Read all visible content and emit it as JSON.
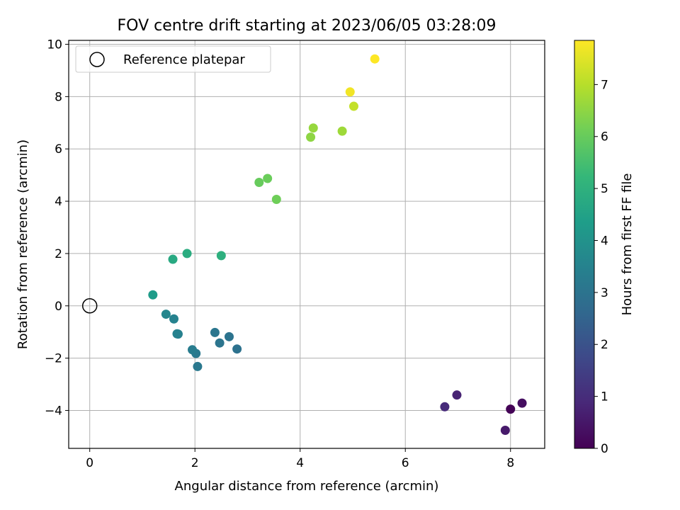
{
  "chart_data": {
    "type": "scatter",
    "title": "FOV centre drift starting at 2023/06/05 03:28:09",
    "xlabel": "Angular distance from reference (arcmin)",
    "ylabel": "Rotation from reference (arcmin)",
    "xlim": [
      -0.4,
      8.65
    ],
    "ylim": [
      -5.45,
      10.15
    ],
    "xticks": [
      "0",
      "2",
      "4",
      "6",
      "8"
    ],
    "yticks": [
      "−4",
      "−2",
      "0",
      "2",
      "4",
      "6",
      "8",
      "10"
    ],
    "grid": true,
    "legend": {
      "placement": "upper-left",
      "entries": [
        "Reference platepar"
      ]
    },
    "reference_point": {
      "x": 0,
      "y": 0
    },
    "colorbar": {
      "label": "Hours from first FF file",
      "range": [
        0,
        7.85
      ],
      "ticks": [
        "0",
        "1",
        "2",
        "3",
        "4",
        "5",
        "6",
        "7"
      ],
      "colormap": "viridis"
    },
    "points": [
      {
        "x": 8.0,
        "y": -3.95,
        "hours": 0.05
      },
      {
        "x": 8.22,
        "y": -3.72,
        "hours": 0.3
      },
      {
        "x": 7.9,
        "y": -4.76,
        "hours": 0.55
      },
      {
        "x": 6.98,
        "y": -3.41,
        "hours": 0.75
      },
      {
        "x": 6.75,
        "y": -3.86,
        "hours": 0.95
      },
      {
        "x": 2.8,
        "y": -1.65,
        "hours": 2.95
      },
      {
        "x": 2.65,
        "y": -1.18,
        "hours": 3.0
      },
      {
        "x": 2.47,
        "y": -1.42,
        "hours": 3.05
      },
      {
        "x": 2.38,
        "y": -1.02,
        "hours": 3.1
      },
      {
        "x": 2.05,
        "y": -2.32,
        "hours": 3.15
      },
      {
        "x": 2.02,
        "y": -1.82,
        "hours": 3.2
      },
      {
        "x": 1.95,
        "y": -1.68,
        "hours": 3.3
      },
      {
        "x": 1.68,
        "y": -1.08,
        "hours": 3.4
      },
      {
        "x": 1.66,
        "y": -1.07,
        "hours": 3.45
      },
      {
        "x": 1.6,
        "y": -0.5,
        "hours": 3.5
      },
      {
        "x": 1.45,
        "y": -0.32,
        "hours": 3.6
      },
      {
        "x": 1.2,
        "y": 0.42,
        "hours": 4.3
      },
      {
        "x": 1.58,
        "y": 1.78,
        "hours": 4.75
      },
      {
        "x": 1.85,
        "y": 2.0,
        "hours": 4.85
      },
      {
        "x": 2.5,
        "y": 1.92,
        "hours": 4.95
      },
      {
        "x": 3.22,
        "y": 4.72,
        "hours": 6.0
      },
      {
        "x": 3.38,
        "y": 4.87,
        "hours": 6.05
      },
      {
        "x": 3.55,
        "y": 4.07,
        "hours": 6.1
      },
      {
        "x": 4.2,
        "y": 6.45,
        "hours": 6.5
      },
      {
        "x": 4.25,
        "y": 6.8,
        "hours": 6.6
      },
      {
        "x": 4.8,
        "y": 6.68,
        "hours": 6.7
      },
      {
        "x": 5.02,
        "y": 7.63,
        "hours": 7.15
      },
      {
        "x": 4.95,
        "y": 8.18,
        "hours": 7.7
      },
      {
        "x": 5.42,
        "y": 9.44,
        "hours": 7.85
      }
    ]
  }
}
